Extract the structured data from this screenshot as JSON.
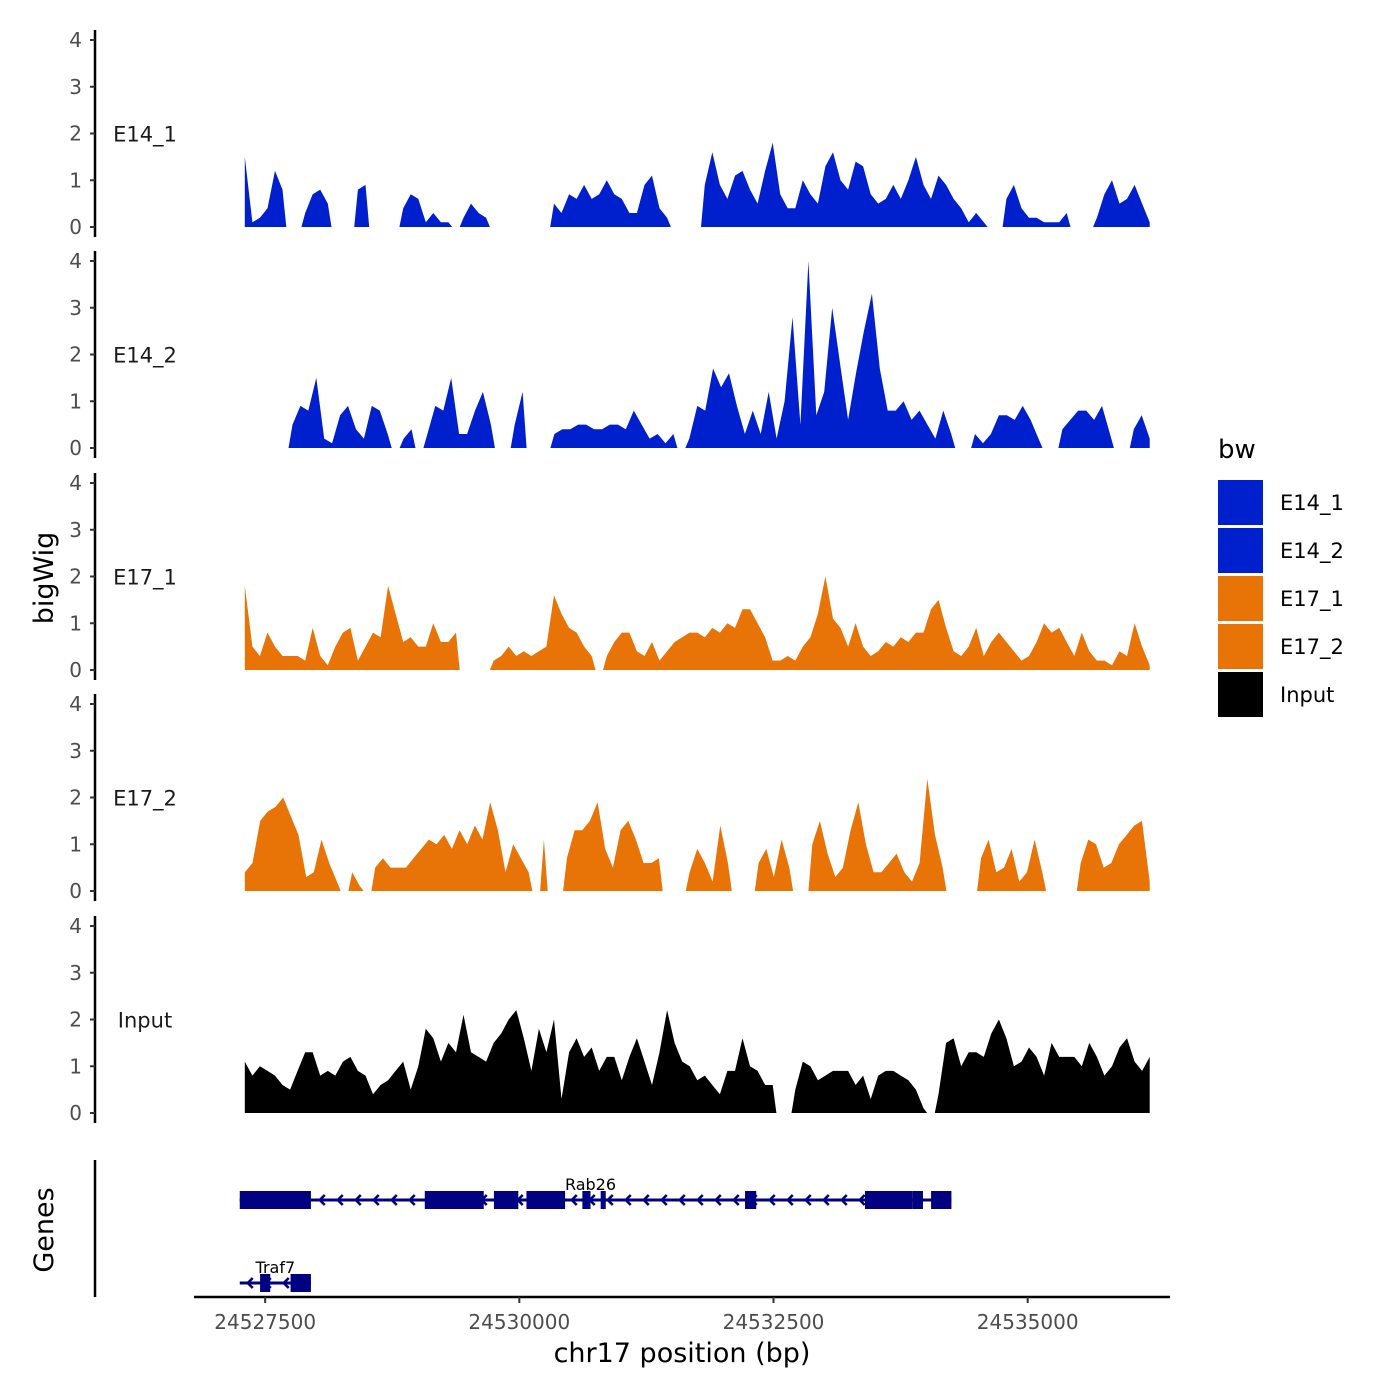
{
  "chart_data": {
    "type": "area",
    "ylabel": "bigWig",
    "xlabel": "chr17 position (bp)",
    "xlim": [
      24526800,
      24536400
    ],
    "ylim": [
      0,
      4
    ],
    "y_ticks": [
      "0",
      "1",
      "2",
      "3",
      "4"
    ],
    "x_ticks": [
      24527500,
      24530000,
      24532500,
      24535000
    ],
    "x_tick_labels": [
      "24527500",
      "24530000",
      "24532500",
      "24535000"
    ],
    "legend": {
      "title": "bw",
      "placement": "right",
      "entries": [
        {
          "label": "E14_1",
          "color": "#0020CD"
        },
        {
          "label": "E14_2",
          "color": "#0020CD"
        },
        {
          "label": "E17_1",
          "color": "#E87407"
        },
        {
          "label": "E17_2",
          "color": "#E87407"
        },
        {
          "label": "Input",
          "color": "#000000"
        }
      ]
    },
    "series": [
      {
        "name": "E14_1",
        "color": "#0020CD",
        "x_start": 24527300,
        "x_end": 24536200,
        "values": [
          1.5,
          0.1,
          0.2,
          0.4,
          1.2,
          0.8,
          0,
          0,
          0.3,
          0.7,
          0.8,
          0.5,
          0,
          0,
          0,
          0.8,
          0.9,
          0,
          0,
          0,
          0,
          0.4,
          0.7,
          0.6,
          0.1,
          0.3,
          0.1,
          0.1,
          0,
          0.2,
          0.5,
          0.3,
          0.2,
          0,
          0,
          0,
          0,
          0,
          0,
          0,
          0,
          0.5,
          0.3,
          0.7,
          0.6,
          0.9,
          0.6,
          0.7,
          1,
          0.7,
          0.6,
          0.3,
          0.3,
          0.9,
          1.1,
          0.4,
          0.2,
          0,
          0,
          0,
          0,
          0.9,
          1.6,
          0.9,
          0.6,
          1.1,
          1.2,
          0.8,
          0.5,
          1.2,
          1.8,
          0.7,
          0.4,
          0.4,
          1,
          0.7,
          0.5,
          1.3,
          1.6,
          1,
          0.8,
          1.4,
          1.3,
          0.7,
          0.5,
          0.6,
          0.9,
          0.6,
          1,
          1.5,
          0.9,
          0.6,
          1.1,
          0.9,
          0.6,
          0.4,
          0.1,
          0.3,
          0.1,
          0,
          0,
          0.6,
          0.9,
          0.4,
          0.2,
          0.2,
          0.1,
          0.1,
          0.1,
          0.3,
          0,
          0,
          0,
          0.2,
          0.7,
          1,
          0.5,
          0.6,
          0.9,
          0.5,
          0.1
        ]
      },
      {
        "name": "E14_2",
        "color": "#0020CD",
        "x_start": 24527300,
        "x_end": 24536200,
        "values": [
          0,
          0,
          0,
          0,
          0,
          0,
          0.5,
          0.9,
          0.8,
          1.5,
          0.2,
          0.1,
          0.7,
          0.9,
          0.4,
          0.2,
          0.9,
          0.8,
          0.3,
          0,
          0.2,
          0.4,
          0,
          0.3,
          0.9,
          0.8,
          1.5,
          0.3,
          0.3,
          0.8,
          1.2,
          0.5,
          0,
          0,
          0.5,
          1.2,
          0,
          0,
          0,
          0.3,
          0.4,
          0.4,
          0.5,
          0.5,
          0.4,
          0.4,
          0.5,
          0.5,
          0.4,
          0.8,
          0.5,
          0.2,
          0.3,
          0.1,
          0.3,
          0,
          0.2,
          0.9,
          0.8,
          1.7,
          1.3,
          1.6,
          0.9,
          0.3,
          0.8,
          0.3,
          1.2,
          0.2,
          1,
          2.8,
          0.5,
          4.0,
          0.7,
          1.2,
          3.0,
          1.8,
          0.6,
          1.6,
          2.5,
          3.3,
          1.7,
          0.8,
          0.8,
          1,
          0.6,
          0.8,
          0.5,
          0.2,
          0.8,
          0.3,
          0,
          0,
          0.3,
          0.1,
          0.3,
          0.7,
          0.7,
          0.6,
          0.9,
          0.6,
          0.2,
          0,
          0,
          0.4,
          0.6,
          0.8,
          0.8,
          0.6,
          0.9,
          0.3,
          0,
          0,
          0.4,
          0.7,
          0.2
        ]
      },
      {
        "name": "E17_1",
        "color": "#E87407",
        "x_start": 24527300,
        "x_end": 24536200,
        "values": [
          1.8,
          0.5,
          0.3,
          0.8,
          0.5,
          0.3,
          0.3,
          0.3,
          0.2,
          0.9,
          0.3,
          0.1,
          0.5,
          0.8,
          0.9,
          0.2,
          0.5,
          0.8,
          0.7,
          1.8,
          1.2,
          0.6,
          0.7,
          0.5,
          0.5,
          1,
          0.6,
          0.6,
          0.8,
          0,
          0,
          0,
          0,
          0.2,
          0.3,
          0.5,
          0.3,
          0.4,
          0.3,
          0.4,
          0.5,
          1.6,
          1.2,
          0.9,
          0.8,
          0.5,
          0.3,
          0,
          0.3,
          0.6,
          0.8,
          0.8,
          0.4,
          0.3,
          0.6,
          0.2,
          0.4,
          0.6,
          0.7,
          0.8,
          0.8,
          0.7,
          0.9,
          0.8,
          1,
          0.9,
          1.3,
          1.3,
          1,
          0.7,
          0.2,
          0.2,
          0.3,
          0.2,
          0.5,
          0.7,
          1.2,
          2.0,
          1.1,
          0.9,
          0.5,
          1,
          0.5,
          0.3,
          0.4,
          0.6,
          0.5,
          0.7,
          0.6,
          0.8,
          0.8,
          1.3,
          1.5,
          0.9,
          0.4,
          0.3,
          0.5,
          0.9,
          0.3,
          0.6,
          0.8,
          0.6,
          0.4,
          0.2,
          0.3,
          0.6,
          1,
          0.8,
          0.9,
          0.6,
          0.3,
          0.8,
          0.4,
          0.2,
          0.2,
          0.1,
          0.4,
          0.3,
          1,
          0.5,
          0.1
        ]
      },
      {
        "name": "E17_2",
        "color": "#E87407",
        "x_start": 24527300,
        "x_end": 24536200,
        "values": [
          0.4,
          0.6,
          1.5,
          1.7,
          1.8,
          2.0,
          1.6,
          1.2,
          0.3,
          0.4,
          1.1,
          0.6,
          0.2,
          0,
          0.4,
          0.1,
          0,
          0.5,
          0.7,
          0.5,
          0.5,
          0.5,
          0.7,
          0.9,
          1.1,
          1,
          1.2,
          0.9,
          1.3,
          1,
          1.4,
          1.1,
          1.9,
          1.3,
          0.4,
          1,
          0.7,
          0.4,
          0,
          1.1,
          0,
          0,
          0.7,
          1.3,
          1.3,
          1.5,
          1.9,
          0.9,
          0.5,
          1.3,
          1.5,
          1.1,
          0.6,
          0.6,
          0.7,
          0,
          0,
          0,
          0.4,
          0.9,
          0.6,
          0.2,
          1.4,
          0.6,
          0,
          0,
          0,
          0.6,
          0.9,
          0.3,
          1.1,
          0.5,
          0,
          0,
          1,
          1.5,
          0.8,
          0.3,
          0.5,
          1.3,
          1.9,
          1,
          0.4,
          0.4,
          0.6,
          0.8,
          0.4,
          0.2,
          0.6,
          2.4,
          1.2,
          0.5,
          0,
          0,
          0,
          0,
          0.7,
          1.1,
          0.4,
          0.5,
          0.9,
          0.2,
          0.4,
          1.1,
          0.4,
          0,
          0,
          0,
          0,
          0.6,
          1.1,
          1,
          0.5,
          0.6,
          1,
          1.2,
          1.4,
          1.5,
          0.2
        ]
      },
      {
        "name": "Input",
        "color": "#000000",
        "x_start": 24527300,
        "x_end": 24536200,
        "values": [
          1.1,
          0.8,
          1,
          0.9,
          0.8,
          0.6,
          0.5,
          0.9,
          1.3,
          1.3,
          0.8,
          0.9,
          0.8,
          1.1,
          1.2,
          0.9,
          0.8,
          0.4,
          0.6,
          0.7,
          0.9,
          1.1,
          0.5,
          1,
          1.8,
          1.6,
          1.1,
          1.5,
          1.3,
          2.1,
          1.3,
          1.2,
          1.1,
          1.5,
          1.7,
          2.0,
          2.2,
          1.6,
          0.9,
          1.8,
          1.3,
          2.0,
          0.3,
          1.3,
          1.6,
          1.2,
          1.4,
          0.9,
          1.2,
          1.2,
          0.7,
          1.2,
          1.6,
          1.1,
          0.6,
          1.3,
          2.2,
          1.5,
          1.1,
          1,
          0.7,
          0.8,
          0.6,
          0.4,
          0.9,
          0.9,
          1.6,
          1,
          0.9,
          0.6,
          0.6,
          0,
          0,
          0.5,
          1.1,
          1,
          0.7,
          0.8,
          0.9,
          0.9,
          0.9,
          0.6,
          0.8,
          0.3,
          0.8,
          0.9,
          0.9,
          0.8,
          0.7,
          0.5,
          0.1,
          0,
          0.4,
          1.5,
          1.6,
          1,
          1.3,
          1.3,
          1.2,
          1.7,
          2.0,
          1.6,
          1,
          1.1,
          1.4,
          1.2,
          0.8,
          1.5,
          1.2,
          1.2,
          1.2,
          1,
          1.5,
          1.2,
          0.8,
          1,
          1.4,
          1.6,
          1.1,
          0.9,
          1.2
        ]
      }
    ],
    "genes": {
      "title": "Genes",
      "color": "#000080",
      "items": [
        {
          "name": "Rab26",
          "strand": "-",
          "start": 24527250,
          "end": 24534250,
          "exons": [
            [
              24527250,
              24527950
            ],
            [
              24529070,
              24529650
            ],
            [
              24529750,
              24529990
            ],
            [
              24530070,
              24530450
            ],
            [
              24530620,
              24530700
            ],
            [
              24530800,
              24530850
            ],
            [
              24532220,
              24532330
            ],
            [
              24533400,
              24533870
            ],
            [
              24533870,
              24533970
            ],
            [
              24534050,
              24534250
            ]
          ]
        },
        {
          "name": "Traf7",
          "strand": "-",
          "start": 24527250,
          "end": 24527950,
          "exons": [
            [
              24527450,
              24527550
            ],
            [
              24527750,
              24527950
            ]
          ]
        }
      ]
    }
  }
}
